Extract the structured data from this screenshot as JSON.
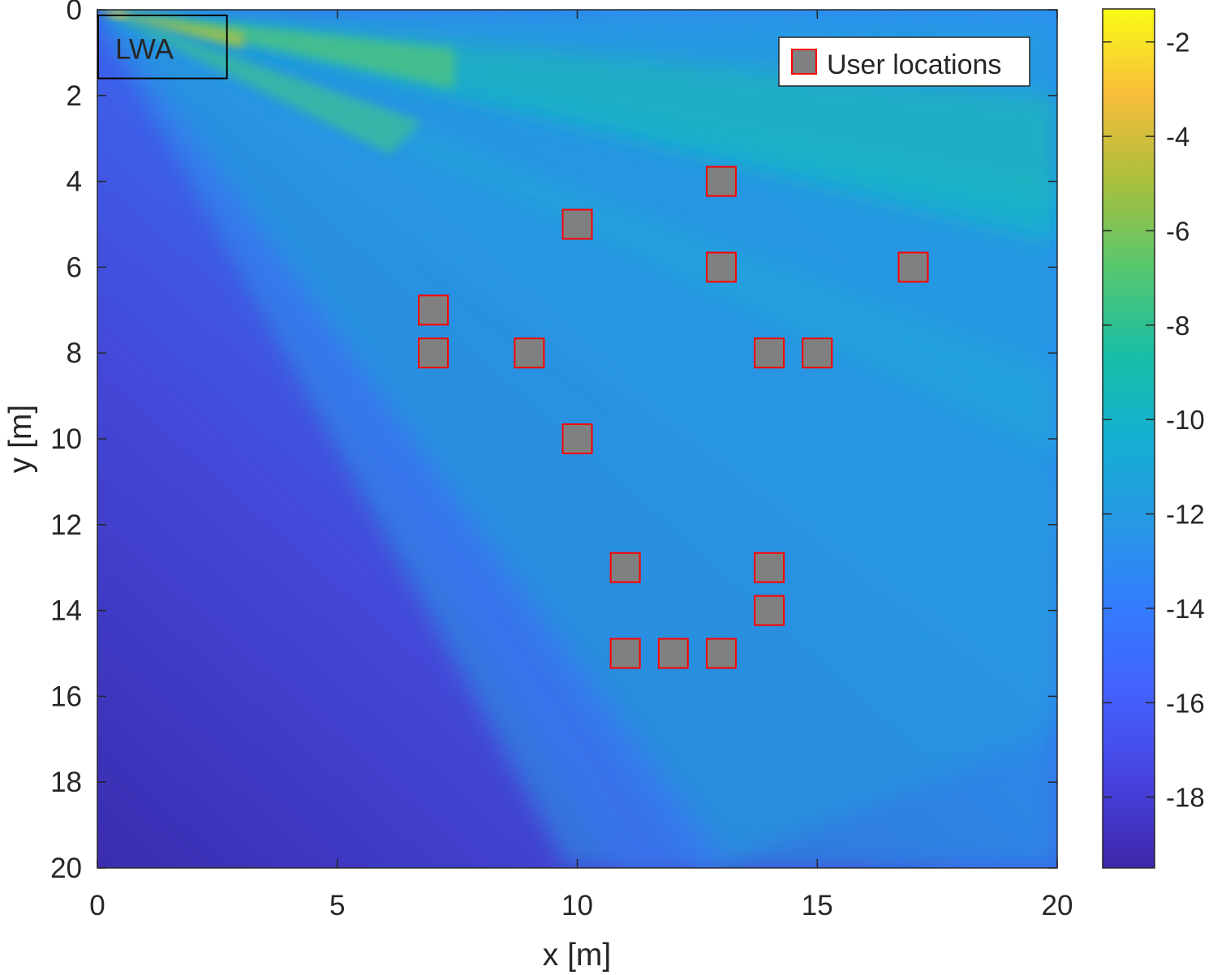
{
  "chart_data": {
    "type": "heatmap",
    "title": "",
    "xlabel": "x [m]",
    "ylabel": "y [m]",
    "xlim": [
      0,
      20
    ],
    "ylim": [
      0,
      20
    ],
    "y_reversed": true,
    "xticks": [
      "0",
      "5",
      "10",
      "15",
      "20"
    ],
    "yticks": [
      "0",
      "2",
      "4",
      "6",
      "8",
      "10",
      "12",
      "14",
      "16",
      "18",
      "20"
    ],
    "colorbar": {
      "range": [
        -19.5,
        -1.3
      ],
      "ticks": [
        "-2",
        "-4",
        "-6",
        "-8",
        "-10",
        "-12",
        "-14",
        "-16",
        "-18"
      ],
      "colormap": "parula"
    },
    "antenna_box": {
      "label": "LWA",
      "x": [
        0,
        2.7
      ],
      "y": [
        0,
        1.6
      ]
    },
    "legend": {
      "label": "User locations",
      "location": "top-right"
    },
    "series": [
      {
        "name": "User locations",
        "marker": "square",
        "face_color": "#808080",
        "edge_color": "#ff0000",
        "points": [
          [
            13,
            4
          ],
          [
            10,
            5
          ],
          [
            13,
            6
          ],
          [
            17,
            6
          ],
          [
            7,
            7
          ],
          [
            7,
            8
          ],
          [
            9,
            8
          ],
          [
            14,
            8
          ],
          [
            15,
            8
          ],
          [
            10,
            10
          ],
          [
            11,
            13
          ],
          [
            14,
            13
          ],
          [
            14,
            14
          ],
          [
            11,
            15
          ],
          [
            12,
            15
          ],
          [
            13,
            15
          ]
        ]
      }
    ]
  }
}
